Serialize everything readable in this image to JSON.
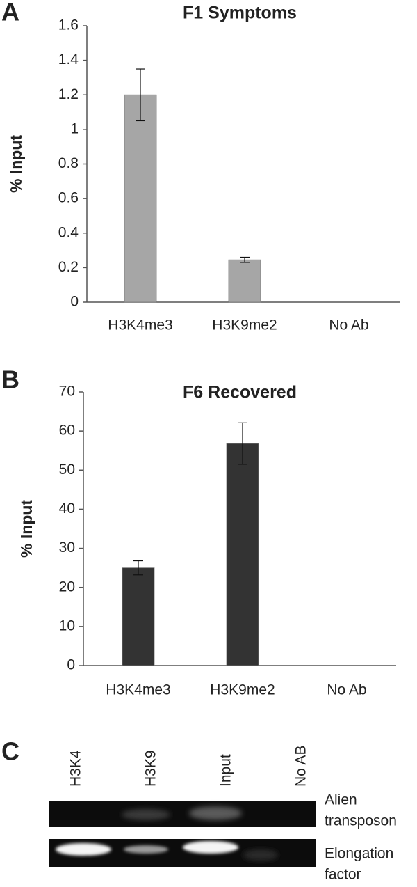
{
  "chart_data": [
    {
      "type": "bar",
      "panel_label": "A",
      "title": "F1 Symptoms",
      "y_label": "% Input",
      "categories": [
        "H3K4me3",
        "H3K9me2",
        "No Ab"
      ],
      "values": [
        1.2,
        0.245,
        0
      ],
      "errors": [
        0.15,
        0.015,
        0
      ],
      "color": "#a6a6a6",
      "ylim": [
        0,
        1.6
      ],
      "yticks": [
        0,
        0.2,
        0.4,
        0.6,
        0.8,
        1,
        1.2,
        1.4,
        1.6
      ],
      "grid": false
    },
    {
      "type": "bar",
      "panel_label": "B",
      "title": "F6 Recovered",
      "y_label": "% Input",
      "categories": [
        "H3K4me3",
        "H3K9me2",
        "No Ab"
      ],
      "values": [
        25,
        56.8,
        0
      ],
      "errors": [
        1.8,
        5.3,
        0
      ],
      "color": "#333333",
      "ylim": [
        0,
        70
      ],
      "yticks": [
        0,
        10,
        20,
        30,
        40,
        50,
        60,
        70
      ],
      "grid": false
    }
  ],
  "gel": {
    "panel_label": "C",
    "lanes": [
      "H3K4",
      "H3K9",
      "Input",
      "No AB"
    ],
    "rows": [
      {
        "label_lines": [
          "Alien",
          "transposon"
        ]
      },
      {
        "label_lines": [
          "Elongation",
          "factor"
        ]
      }
    ]
  }
}
